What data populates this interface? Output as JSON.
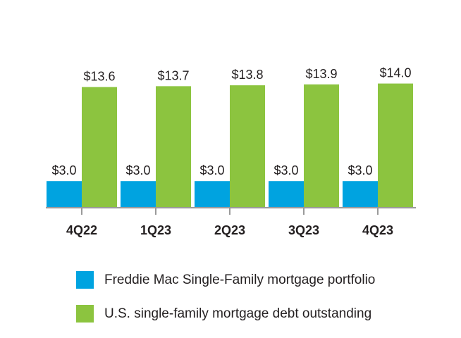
{
  "chart_data": {
    "type": "bar",
    "categories": [
      "4Q22",
      "1Q23",
      "2Q23",
      "3Q23",
      "4Q23"
    ],
    "series": [
      {
        "name": "Freddie Mac Single-Family mortgage portfolio",
        "values": [
          3.0,
          3.0,
          3.0,
          3.0,
          3.0
        ],
        "labels": [
          "$3.0",
          "$3.0",
          "$3.0",
          "$3.0",
          "$3.0"
        ],
        "color": "#00a3e0"
      },
      {
        "name": "U.S. single-family mortgage debt outstanding",
        "values": [
          13.6,
          13.7,
          13.8,
          13.9,
          14.0
        ],
        "labels": [
          "$13.6",
          "$13.7",
          "$13.8",
          "$13.9",
          "$14.0"
        ],
        "color": "#8cc43f"
      }
    ],
    "title": "",
    "xlabel": "",
    "ylabel": "",
    "ylim": [
      0,
      14.0
    ],
    "grid": false,
    "legend_position": "bottom",
    "axis_color": "#9a9a9a"
  }
}
